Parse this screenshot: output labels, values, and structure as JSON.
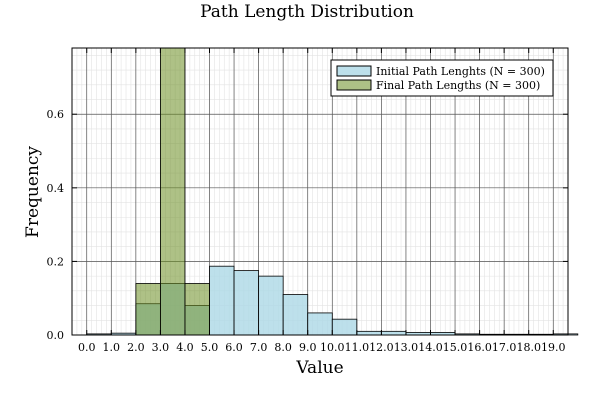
{
  "chart_data": {
    "type": "bar",
    "title": "Path Length Distribution",
    "xlabel": "Value",
    "ylabel": "Frequency",
    "xlim": [
      -0.6,
      19.6
    ],
    "ylim": [
      0,
      0.78
    ],
    "xticks": [
      0,
      1,
      2,
      3,
      4,
      5,
      6,
      7,
      8,
      9,
      10,
      11,
      12,
      13,
      14,
      15,
      16,
      17,
      18,
      19
    ],
    "xtick_labels": [
      "0.0",
      "1.0",
      "2.0",
      "3.0",
      "4.0",
      "5.0",
      "6.0",
      "7.0",
      "8.0",
      "9.0",
      "10.0",
      "11.0",
      "12.0",
      "13.0",
      "14.0",
      "15.0",
      "16.0",
      "17.0",
      "18.0",
      "19.0"
    ],
    "yticks": [
      0.0,
      0.2,
      0.4,
      0.6
    ],
    "ytick_labels": [
      "0.0",
      "0.2",
      "0.4",
      "0.6"
    ],
    "grid": true,
    "minor_grid": true,
    "legend_position": "top-right",
    "bin_width": 1,
    "series": [
      {
        "name": "Initial Path Lenghts (N = 300)",
        "color": "#add8e6",
        "bins": [
          {
            "start": 0,
            "value": 0.003
          },
          {
            "start": 1,
            "value": 0.005
          },
          {
            "start": 2,
            "value": 0.085
          },
          {
            "start": 3,
            "value": 0.14
          },
          {
            "start": 4,
            "value": 0.08
          },
          {
            "start": 5,
            "value": 0.187
          },
          {
            "start": 6,
            "value": 0.175
          },
          {
            "start": 7,
            "value": 0.16
          },
          {
            "start": 8,
            "value": 0.11
          },
          {
            "start": 9,
            "value": 0.06
          },
          {
            "start": 10,
            "value": 0.043
          },
          {
            "start": 11,
            "value": 0.01
          },
          {
            "start": 12,
            "value": 0.01
          },
          {
            "start": 13,
            "value": 0.007
          },
          {
            "start": 14,
            "value": 0.007
          },
          {
            "start": 15,
            "value": 0.003
          },
          {
            "start": 16,
            "value": 0.002
          },
          {
            "start": 17,
            "value": 0.002
          },
          {
            "start": 18,
            "value": 0.002
          },
          {
            "start": 19,
            "value": 0.003
          }
        ]
      },
      {
        "name": "Final Path Lengths (N = 300)",
        "color": "#6b8e23",
        "bins": [
          {
            "start": 2,
            "value": 0.14
          },
          {
            "start": 3,
            "value": 0.78
          },
          {
            "start": 4,
            "value": 0.14
          }
        ]
      }
    ]
  }
}
